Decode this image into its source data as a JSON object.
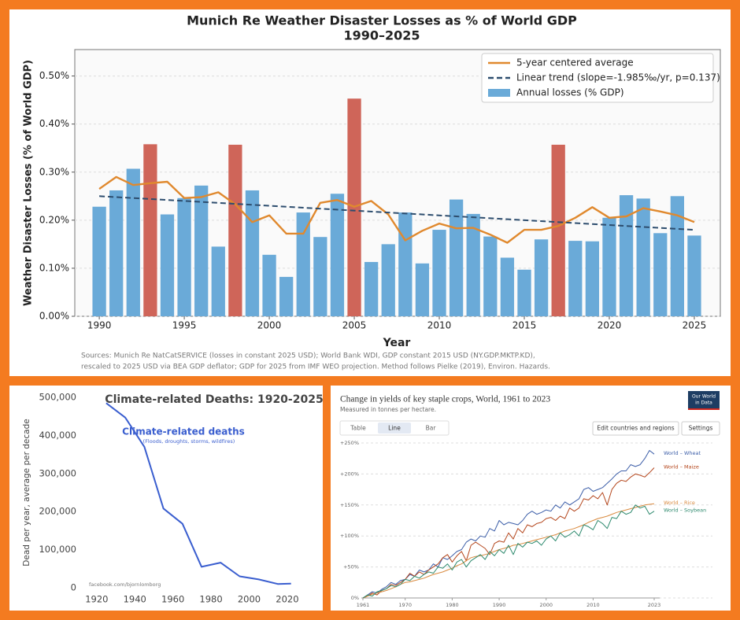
{
  "chart_data": [
    {
      "type": "bar",
      "title": [
        "Munich Re Weather Disaster Losses as % of World GDP",
        "1990–2025"
      ],
      "y_label": "Weather Disaster Losses (% of World GDP)",
      "x_label": "Year",
      "sources": [
        "Sources: Munich Re NatCatSERVICE (losses in constant 2025 USD); World Bank WDI, GDP constant 2015 USD (NY.GDP.MKTP.KD),",
        "rescaled to 2025 USD via BEA GDP deflator; GDP for 2025 from IMF WEO projection. Method follows Pielke (2019), Environ. Hazards."
      ],
      "x": [
        1990,
        1991,
        1992,
        1993,
        1994,
        1995,
        1996,
        1997,
        1998,
        1999,
        2000,
        2001,
        2002,
        2003,
        2004,
        2005,
        2006,
        2007,
        2008,
        2009,
        2010,
        2011,
        2012,
        2013,
        2014,
        2015,
        2016,
        2017,
        2018,
        2019,
        2020,
        2021,
        2022,
        2023,
        2024,
        2025
      ],
      "series": [
        {
          "name": "5-year centered average",
          "type": "line",
          "color": "#e0892e",
          "values": [
            0.265,
            0.29,
            0.273,
            0.277,
            0.28,
            0.246,
            0.248,
            0.258,
            0.233,
            0.196,
            0.21,
            0.172,
            0.172,
            0.236,
            0.242,
            0.228,
            0.24,
            0.212,
            0.158,
            0.178,
            0.193,
            0.183,
            0.184,
            0.17,
            0.153,
            0.18,
            0.18,
            0.188,
            0.205,
            0.227,
            0.205,
            0.208,
            0.225,
            0.218,
            0.21,
            0.196
          ]
        },
        {
          "name": "Linear trend (slope=-1.985‰/yr, p=0.137)",
          "type": "line",
          "linestyle": "dashed",
          "color": "#2d4d6e",
          "x": [
            1990,
            2025
          ],
          "values": [
            0.25,
            0.18
          ]
        },
        {
          "name": "Annual losses (% GDP)",
          "type": "bar",
          "color": "#6aaad8",
          "values": [
            0.228,
            0.262,
            0.307,
            0.358,
            0.212,
            0.246,
            0.272,
            0.145,
            0.357,
            0.262,
            0.128,
            0.082,
            0.216,
            0.165,
            0.255,
            0.453,
            0.113,
            0.15,
            0.216,
            0.11,
            0.18,
            0.243,
            0.213,
            0.166,
            0.122,
            0.097,
            0.16,
            0.357,
            0.157,
            0.156,
            0.205,
            0.252,
            0.245,
            0.173,
            0.25,
            0.168
          ],
          "colors": [
            "#6aaad8",
            "#6aaad8",
            "#6aaad8",
            "#cf6559",
            "#6aaad8",
            "#6aaad8",
            "#6aaad8",
            "#6aaad8",
            "#cf6559",
            "#6aaad8",
            "#6aaad8",
            "#6aaad8",
            "#6aaad8",
            "#6aaad8",
            "#6aaad8",
            "#cf6559",
            "#6aaad8",
            "#6aaad8",
            "#6aaad8",
            "#6aaad8",
            "#6aaad8",
            "#6aaad8",
            "#6aaad8",
            "#6aaad8",
            "#6aaad8",
            "#6aaad8",
            "#6aaad8",
            "#cf6559",
            "#6aaad8",
            "#6aaad8",
            "#6aaad8",
            "#6aaad8",
            "#6aaad8",
            "#6aaad8",
            "#6aaad8",
            "#6aaad8"
          ]
        }
      ],
      "xlim": [
        1988.56,
        2026.53
      ],
      "xticks": [
        1990,
        1995,
        2000,
        2005,
        2010,
        2015,
        2020,
        2025
      ],
      "ylim": [
        0,
        0.555
      ],
      "yticks": [
        {
          "value": 0,
          "label": "0.00%"
        },
        {
          "value": 0.1,
          "label": "0.10%"
        },
        {
          "value": 0.2,
          "label": "0.20%"
        },
        {
          "value": 0.3,
          "label": "0.30%"
        },
        {
          "value": 0.4,
          "label": "0.40%"
        },
        {
          "value": 0.5,
          "label": "0.50%"
        }
      ],
      "grid": true,
      "legend": "upper right"
    },
    {
      "type": "line",
      "title": "Climate-related Deaths: 1920-2025",
      "annotation": [
        "Climate-related deaths",
        "(Floods, droughts, storms, wildfires)"
      ],
      "y_label": "Dead per year, average per decade",
      "credit": "facebook.com/bjornlomborg",
      "x": [
        1925,
        1935,
        1945,
        1955,
        1965,
        1975,
        1985,
        1995,
        2005,
        2015,
        2022
      ],
      "series": [
        {
          "name": "Climate-related deaths",
          "color": "#3a5ecf",
          "values": [
            485000,
            447000,
            370000,
            208000,
            168000,
            55000,
            66000,
            30000,
            22000,
            10000,
            11000
          ]
        }
      ],
      "xlim": [
        1918,
        2025
      ],
      "xticks": [
        1920,
        1940,
        1960,
        1980,
        2000,
        2020
      ],
      "ylim": [
        0,
        500000
      ],
      "yticks": [
        0,
        {
          "value": 100000,
          "label": "100,000"
        },
        {
          "value": 200000,
          "label": "200,000"
        },
        {
          "value": 300000,
          "label": "300,000"
        },
        {
          "value": 400000,
          "label": "400,000"
        },
        {
          "value": 500000,
          "label": "500,000"
        }
      ],
      "grid": false
    },
    {
      "type": "line",
      "title": "Change in yields of key staple crops, World, 1961 to 2023",
      "subtitle": "Measured in tonnes per hectare.",
      "controls": {
        "tabs": [
          "Table",
          "Line",
          "Bar"
        ],
        "buttons": [
          "Edit countries and regions",
          "Settings"
        ],
        "logo": [
          "Our World",
          "in Data"
        ]
      },
      "x": [
        1961,
        1962,
        1963,
        1964,
        1965,
        1966,
        1967,
        1968,
        1969,
        1970,
        1971,
        1972,
        1973,
        1974,
        1975,
        1976,
        1977,
        1978,
        1979,
        1980,
        1981,
        1982,
        1983,
        1984,
        1985,
        1986,
        1987,
        1988,
        1989,
        1990,
        1991,
        1992,
        1993,
        1994,
        1995,
        1996,
        1997,
        1998,
        1999,
        2000,
        2001,
        2002,
        2003,
        2004,
        2005,
        2006,
        2007,
        2008,
        2009,
        2010,
        2011,
        2012,
        2013,
        2014,
        2015,
        2016,
        2017,
        2018,
        2019,
        2020,
        2021,
        2022,
        2023
      ],
      "series": [
        {
          "name": "World – Wheat",
          "color": "#3c5ea8",
          "values": [
            0,
            5,
            10,
            8,
            14,
            18,
            25,
            22,
            28,
            30,
            38,
            35,
            45,
            42,
            45,
            55,
            50,
            65,
            62,
            68,
            75,
            78,
            90,
            95,
            92,
            100,
            98,
            112,
            108,
            125,
            118,
            122,
            120,
            118,
            125,
            135,
            140,
            135,
            138,
            142,
            140,
            150,
            145,
            155,
            150,
            155,
            160,
            175,
            178,
            172,
            175,
            178,
            185,
            192,
            200,
            205,
            205,
            215,
            212,
            215,
            225,
            238,
            232
          ]
        },
        {
          "name": "World – Maize",
          "color": "#b4461c",
          "values": [
            0,
            3,
            8,
            5,
            12,
            15,
            22,
            20,
            25,
            30,
            40,
            35,
            42,
            38,
            45,
            50,
            55,
            65,
            70,
            58,
            68,
            75,
            60,
            85,
            90,
            85,
            80,
            70,
            88,
            92,
            90,
            105,
            95,
            112,
            105,
            118,
            115,
            120,
            122,
            128,
            130,
            125,
            132,
            128,
            145,
            140,
            145,
            160,
            158,
            165,
            160,
            170,
            150,
            175,
            185,
            190,
            188,
            195,
            200,
            198,
            195,
            202,
            210
          ]
        },
        {
          "name": "World – Rice",
          "color": "#d98a3f",
          "values": [
            0,
            3,
            6,
            8,
            10,
            12,
            15,
            18,
            22,
            25,
            26,
            28,
            30,
            32,
            35,
            38,
            40,
            42,
            45,
            48,
            52,
            55,
            60,
            65,
            67,
            68,
            70,
            72,
            75,
            78,
            80,
            82,
            85,
            86,
            88,
            90,
            92,
            94,
            96,
            98,
            100,
            102,
            105,
            108,
            110,
            112,
            115,
            118,
            122,
            125,
            128,
            130,
            132,
            135,
            138,
            140,
            142,
            144,
            146,
            148,
            150,
            151,
            152
          ]
        },
        {
          "name": "World – Soybean",
          "color": "#2e8a6e",
          "values": [
            0,
            5,
            3,
            10,
            12,
            15,
            20,
            18,
            22,
            30,
            28,
            35,
            32,
            38,
            42,
            40,
            50,
            48,
            55,
            45,
            58,
            62,
            50,
            60,
            65,
            70,
            62,
            75,
            68,
            78,
            72,
            85,
            70,
            88,
            82,
            90,
            88,
            92,
            85,
            95,
            100,
            92,
            105,
            98,
            102,
            108,
            100,
            118,
            115,
            110,
            125,
            120,
            112,
            130,
            128,
            140,
            135,
            138,
            150,
            145,
            148,
            135,
            140
          ]
        }
      ],
      "xlim": [
        1961,
        2023
      ],
      "xticks": [
        1961,
        1970,
        1980,
        1990,
        2000,
        2010,
        2023
      ],
      "ylim": [
        0,
        250
      ],
      "yticks": [
        {
          "value": 0,
          "label": "0%"
        },
        {
          "value": 50,
          "label": "+50%"
        },
        {
          "value": 100,
          "label": "+100%"
        },
        {
          "value": 150,
          "label": "+150%"
        },
        {
          "value": 200,
          "label": "+200%"
        },
        {
          "value": 250,
          "label": "+250%"
        }
      ],
      "grid": true,
      "end_labels": true
    }
  ]
}
